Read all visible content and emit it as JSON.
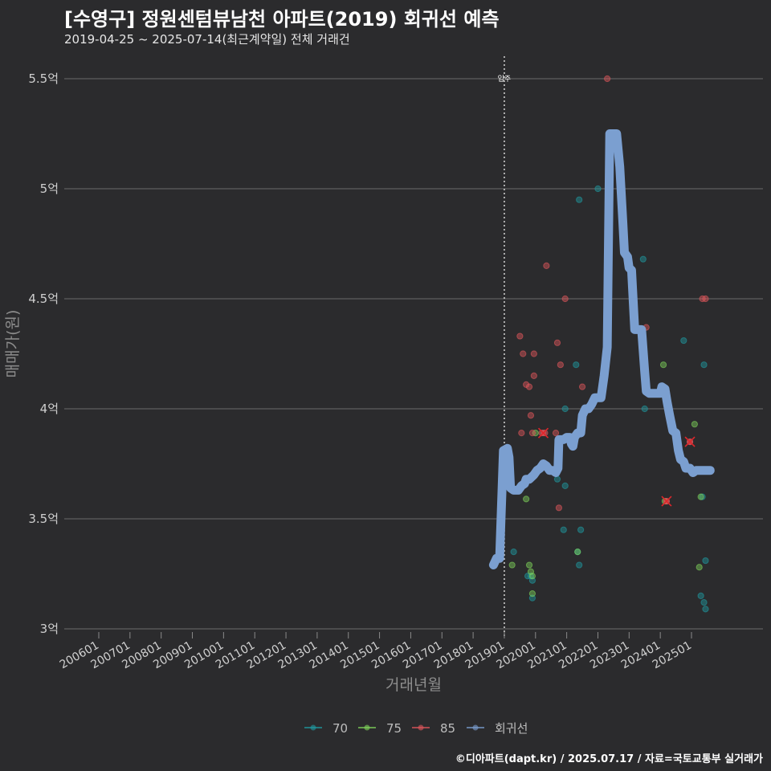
{
  "title": "[수영구] 정원센텀뷰남천 아파트(2019) 회귀선 예측",
  "subtitle": "2019-04-25 ~ 2025-07-14(최근계약일) 전체 거래건",
  "caption": "©디아파트(dapt.kr) / 2025.07.17 / 자료=국토교통부 실거래가",
  "colors": {
    "background": "#2b2b2d",
    "grid": "#6b6b6b",
    "series_70": "#1f9aa0",
    "series_75": "#7fd35a",
    "series_85": "#e0565b",
    "regression": "#7b9fd0",
    "marker_x": "#e0262b"
  },
  "chart_data": {
    "type": "scatter",
    "title": "[수영구] 정원센텀뷰남천 아파트(2019) 회귀선 예측",
    "subtitle": "2019-04-25 ~ 2025-07-14(최근계약일) 전체 거래건",
    "xlabel": "거래년월",
    "ylabel": "매매가(원)",
    "xlim": [
      2005.25,
      2025.5
    ],
    "ylim": [
      2.98,
      5.6
    ],
    "yticks": [
      3.0,
      3.5,
      4.0,
      4.5,
      5.0,
      5.5
    ],
    "ytick_labels": [
      "3억",
      "3.5억",
      "4억",
      "4.5억",
      "5억",
      "5.5억"
    ],
    "xticks": [
      2006,
      2007,
      2008,
      2009,
      2010,
      2011,
      2012,
      2013,
      2014,
      2015,
      2016,
      2017,
      2018,
      2019,
      2020,
      2021,
      2022,
      2023,
      2024,
      2025
    ],
    "xtick_labels": [
      "200601",
      "200701",
      "200801",
      "200901",
      "201001",
      "201101",
      "201201",
      "201301",
      "201401",
      "201501",
      "201601",
      "201701",
      "201801",
      "201901",
      "202001",
      "202101",
      "202201",
      "202301",
      "202401",
      "202501"
    ],
    "reference_line": {
      "x": 2019.0,
      "label": "입주"
    },
    "legend": [
      "70",
      "75",
      "85",
      "회귀선"
    ],
    "series": [
      {
        "name": "70",
        "points": [
          [
            2019.3,
            3.35
          ],
          [
            2019.75,
            3.24
          ],
          [
            2019.85,
            3.24
          ],
          [
            2019.9,
            3.22
          ],
          [
            2019.9,
            3.14
          ],
          [
            2020.7,
            3.68
          ],
          [
            2020.9,
            3.45
          ],
          [
            2020.95,
            3.65
          ],
          [
            2020.95,
            4.0
          ],
          [
            2021.3,
            4.2
          ],
          [
            2021.35,
            3.35
          ],
          [
            2021.4,
            3.29
          ],
          [
            2021.4,
            4.95
          ],
          [
            2021.45,
            3.45
          ],
          [
            2022.0,
            5.0
          ],
          [
            2023.45,
            4.68
          ],
          [
            2023.5,
            4.0
          ],
          [
            2024.75,
            4.31
          ],
          [
            2025.3,
            3.15
          ],
          [
            2025.35,
            3.6
          ],
          [
            2025.4,
            3.12
          ],
          [
            2025.4,
            4.2
          ],
          [
            2025.45,
            3.31
          ],
          [
            2025.45,
            3.09
          ]
        ]
      },
      {
        "name": "75",
        "points": [
          [
            2019.25,
            3.29
          ],
          [
            2019.7,
            3.59
          ],
          [
            2019.8,
            3.29
          ],
          [
            2019.85,
            3.26
          ],
          [
            2019.9,
            3.24
          ],
          [
            2019.9,
            3.16
          ],
          [
            2020.0,
            3.89
          ],
          [
            2021.35,
            3.35
          ],
          [
            2024.1,
            4.2
          ],
          [
            2024.15,
            3.58
          ],
          [
            2025.1,
            3.93
          ],
          [
            2025.25,
            3.28
          ],
          [
            2025.3,
            3.6
          ]
        ]
      },
      {
        "name": "85",
        "points": [
          [
            2019.5,
            4.33
          ],
          [
            2019.55,
            3.89
          ],
          [
            2019.6,
            4.25
          ],
          [
            2019.7,
            4.11
          ],
          [
            2019.8,
            4.1
          ],
          [
            2019.85,
            3.97
          ],
          [
            2019.9,
            3.89
          ],
          [
            2019.95,
            4.25
          ],
          [
            2019.95,
            4.15
          ],
          [
            2020.2,
            3.89
          ],
          [
            2020.3,
            3.89
          ],
          [
            2020.35,
            4.65
          ],
          [
            2020.65,
            3.89
          ],
          [
            2020.7,
            4.3
          ],
          [
            2020.75,
            3.55
          ],
          [
            2020.8,
            4.2
          ],
          [
            2020.95,
            4.5
          ],
          [
            2021.5,
            4.1
          ],
          [
            2022.3,
            5.5
          ],
          [
            2023.55,
            4.37
          ],
          [
            2024.2,
            3.58
          ],
          [
            2024.95,
            3.85
          ],
          [
            2025.35,
            4.5
          ],
          [
            2025.45,
            4.5
          ]
        ]
      },
      {
        "name": "회귀선",
        "points": [
          [
            2018.65,
            3.29
          ],
          [
            2018.75,
            3.32
          ],
          [
            2018.85,
            3.32
          ],
          [
            2018.92,
            3.6
          ],
          [
            2018.97,
            3.81
          ],
          [
            2019.1,
            3.82
          ],
          [
            2019.15,
            3.78
          ],
          [
            2019.2,
            3.64
          ],
          [
            2019.3,
            3.63
          ],
          [
            2019.45,
            3.63
          ],
          [
            2019.55,
            3.65
          ],
          [
            2019.65,
            3.66
          ],
          [
            2019.7,
            3.68
          ],
          [
            2019.8,
            3.68
          ],
          [
            2019.95,
            3.7
          ],
          [
            2020.05,
            3.72
          ],
          [
            2020.15,
            3.73
          ],
          [
            2020.25,
            3.75
          ],
          [
            2020.35,
            3.74
          ],
          [
            2020.45,
            3.72
          ],
          [
            2020.55,
            3.72
          ],
          [
            2020.65,
            3.71
          ],
          [
            2020.72,
            3.73
          ],
          [
            2020.75,
            3.86
          ],
          [
            2020.9,
            3.86
          ],
          [
            2021.0,
            3.87
          ],
          [
            2021.1,
            3.87
          ],
          [
            2021.15,
            3.84
          ],
          [
            2021.2,
            3.83
          ],
          [
            2021.25,
            3.87
          ],
          [
            2021.35,
            3.89
          ],
          [
            2021.45,
            3.89
          ],
          [
            2021.5,
            3.97
          ],
          [
            2021.6,
            4.0
          ],
          [
            2021.7,
            4.0
          ],
          [
            2021.8,
            4.02
          ],
          [
            2021.9,
            4.05
          ],
          [
            2022.0,
            4.05
          ],
          [
            2022.1,
            4.05
          ],
          [
            2022.2,
            4.15
          ],
          [
            2022.3,
            4.28
          ],
          [
            2022.38,
            5.25
          ],
          [
            2022.6,
            5.25
          ],
          [
            2022.7,
            5.1
          ],
          [
            2022.8,
            4.85
          ],
          [
            2022.85,
            4.71
          ],
          [
            2022.95,
            4.69
          ],
          [
            2023.0,
            4.64
          ],
          [
            2023.08,
            4.63
          ],
          [
            2023.18,
            4.36
          ],
          [
            2023.4,
            4.36
          ],
          [
            2023.5,
            4.17
          ],
          [
            2023.55,
            4.08
          ],
          [
            2023.65,
            4.07
          ],
          [
            2023.9,
            4.07
          ],
          [
            2024.0,
            4.07
          ],
          [
            2024.05,
            4.1
          ],
          [
            2024.15,
            4.09
          ],
          [
            2024.22,
            4.03
          ],
          [
            2024.3,
            3.97
          ],
          [
            2024.4,
            3.9
          ],
          [
            2024.5,
            3.89
          ],
          [
            2024.58,
            3.81
          ],
          [
            2024.65,
            3.77
          ],
          [
            2024.75,
            3.76
          ],
          [
            2024.82,
            3.73
          ],
          [
            2024.95,
            3.73
          ],
          [
            2025.05,
            3.71
          ],
          [
            2025.15,
            3.72
          ],
          [
            2025.3,
            3.72
          ],
          [
            2025.5,
            3.72
          ],
          [
            2025.6,
            3.72
          ]
        ]
      }
    ],
    "highlighted": [
      [
        2020.25,
        3.89
      ],
      [
        2024.2,
        3.58
      ],
      [
        2024.95,
        3.85
      ]
    ]
  }
}
